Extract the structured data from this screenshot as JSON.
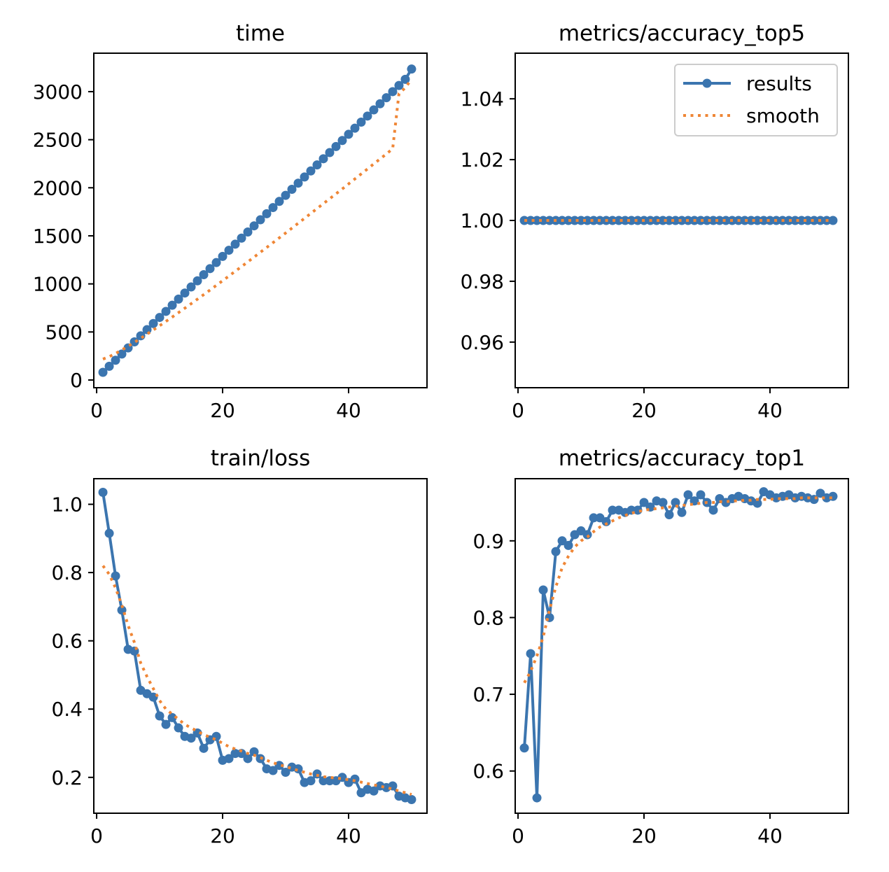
{
  "colors": {
    "results": "#3b75af",
    "smooth": "#ef8636",
    "axes": "#000000",
    "legend_border": "#cccccc"
  },
  "legend": {
    "placement": "top-right",
    "results_label": "results",
    "smooth_label": "smooth"
  },
  "chart_data": [
    {
      "type": "line",
      "title": "time",
      "xlabel": "",
      "ylabel": "",
      "xlim": [
        -0.45,
        52.45
      ],
      "ylim": [
        -80,
        3400
      ],
      "xticks": [
        0,
        20,
        40
      ],
      "yticks": [
        0,
        500,
        1000,
        1500,
        2000,
        2500,
        3000
      ],
      "legend": false,
      "grid": false,
      "x": [
        1,
        2,
        3,
        4,
        5,
        6,
        7,
        8,
        9,
        10,
        11,
        12,
        13,
        14,
        15,
        16,
        17,
        18,
        19,
        20,
        21,
        22,
        23,
        24,
        25,
        26,
        27,
        28,
        29,
        30,
        31,
        32,
        33,
        34,
        35,
        36,
        37,
        38,
        39,
        40,
        41,
        42,
        43,
        44,
        45,
        46,
        47,
        48,
        49,
        50
      ],
      "series": [
        {
          "name": "results",
          "values": [
            80,
            143,
            206,
            270,
            334,
            397,
            460,
            524,
            588,
            651,
            714,
            778,
            842,
            905,
            968,
            1032,
            1096,
            1159,
            1222,
            1286,
            1350,
            1413,
            1476,
            1540,
            1604,
            1667,
            1730,
            1794,
            1858,
            1921,
            1984,
            2048,
            2112,
            2175,
            2238,
            2302,
            2366,
            2429,
            2492,
            2556,
            2620,
            2683,
            2746,
            2810,
            2874,
            2937,
            3000,
            3064,
            3128,
            3235
          ]
        },
        {
          "name": "smooth",
          "values": [
            218,
            243,
            276,
            313,
            351,
            392,
            434,
            477,
            521,
            565,
            610,
            655,
            701,
            747,
            794,
            841,
            888,
            936,
            984,
            1033,
            1082,
            1131,
            1180,
            1229,
            1279,
            1329,
            1379,
            1429,
            1479,
            1529,
            1580,
            1631,
            1682,
            1733,
            1784,
            1835,
            1886,
            1937,
            1988,
            2040,
            2092,
            2144,
            2196,
            2248,
            2300,
            2352,
            2405,
            2980,
            3040,
            3130
          ]
        }
      ]
    },
    {
      "type": "line",
      "title": "metrics/accuracy_top5",
      "xlabel": "",
      "ylabel": "",
      "xlim": [
        -0.45,
        52.45
      ],
      "ylim": [
        0.945,
        1.055
      ],
      "xticks": [
        0,
        20,
        40
      ],
      "yticks": [
        0.96,
        0.98,
        1.0,
        1.02,
        1.04
      ],
      "ytick_labels": [
        "0.96",
        "0.98",
        "1.00",
        "1.02",
        "1.04"
      ],
      "legend": true,
      "grid": false,
      "x": [
        1,
        2,
        3,
        4,
        5,
        6,
        7,
        8,
        9,
        10,
        11,
        12,
        13,
        14,
        15,
        16,
        17,
        18,
        19,
        20,
        21,
        22,
        23,
        24,
        25,
        26,
        27,
        28,
        29,
        30,
        31,
        32,
        33,
        34,
        35,
        36,
        37,
        38,
        39,
        40,
        41,
        42,
        43,
        44,
        45,
        46,
        47,
        48,
        49,
        50
      ],
      "series": [
        {
          "name": "results",
          "values": [
            1,
            1,
            1,
            1,
            1,
            1,
            1,
            1,
            1,
            1,
            1,
            1,
            1,
            1,
            1,
            1,
            1,
            1,
            1,
            1,
            1,
            1,
            1,
            1,
            1,
            1,
            1,
            1,
            1,
            1,
            1,
            1,
            1,
            1,
            1,
            1,
            1,
            1,
            1,
            1,
            1,
            1,
            1,
            1,
            1,
            1,
            1,
            1,
            1,
            1
          ]
        },
        {
          "name": "smooth",
          "values": [
            1,
            1,
            1,
            1,
            1,
            1,
            1,
            1,
            1,
            1,
            1,
            1,
            1,
            1,
            1,
            1,
            1,
            1,
            1,
            1,
            1,
            1,
            1,
            1,
            1,
            1,
            1,
            1,
            1,
            1,
            1,
            1,
            1,
            1,
            1,
            1,
            1,
            1,
            1,
            1,
            1,
            1,
            1,
            1,
            1,
            1,
            1,
            1,
            1,
            1
          ]
        }
      ]
    },
    {
      "type": "line",
      "title": "train/loss",
      "xlabel": "",
      "ylabel": "",
      "xlim": [
        -0.45,
        52.45
      ],
      "ylim": [
        0.095,
        1.075
      ],
      "xticks": [
        0,
        20,
        40
      ],
      "yticks": [
        0.2,
        0.4,
        0.6,
        0.8,
        1.0
      ],
      "legend": false,
      "grid": false,
      "x": [
        1,
        2,
        3,
        4,
        5,
        6,
        7,
        8,
        9,
        10,
        11,
        12,
        13,
        14,
        15,
        16,
        17,
        18,
        19,
        20,
        21,
        22,
        23,
        24,
        25,
        26,
        27,
        28,
        29,
        30,
        31,
        32,
        33,
        34,
        35,
        36,
        37,
        38,
        39,
        40,
        41,
        42,
        43,
        44,
        45,
        46,
        47,
        48,
        49,
        50
      ],
      "series": [
        {
          "name": "results",
          "values": [
            1.035,
            0.915,
            0.79,
            0.69,
            0.575,
            0.57,
            0.455,
            0.445,
            0.435,
            0.38,
            0.355,
            0.375,
            0.345,
            0.32,
            0.315,
            0.33,
            0.285,
            0.31,
            0.32,
            0.25,
            0.255,
            0.27,
            0.27,
            0.255,
            0.275,
            0.255,
            0.225,
            0.22,
            0.235,
            0.215,
            0.23,
            0.225,
            0.185,
            0.19,
            0.21,
            0.19,
            0.19,
            0.19,
            0.2,
            0.185,
            0.195,
            0.155,
            0.165,
            0.16,
            0.175,
            0.17,
            0.175,
            0.145,
            0.14,
            0.135
          ]
        },
        {
          "name": "smooth",
          "values": [
            0.82,
            0.795,
            0.755,
            0.705,
            0.645,
            0.595,
            0.535,
            0.495,
            0.46,
            0.425,
            0.4,
            0.385,
            0.37,
            0.355,
            0.345,
            0.335,
            0.325,
            0.318,
            0.31,
            0.3,
            0.29,
            0.283,
            0.277,
            0.27,
            0.265,
            0.258,
            0.25,
            0.243,
            0.237,
            0.232,
            0.226,
            0.22,
            0.215,
            0.21,
            0.206,
            0.202,
            0.2,
            0.198,
            0.196,
            0.193,
            0.19,
            0.186,
            0.182,
            0.178,
            0.174,
            0.17,
            0.166,
            0.16,
            0.155,
            0.15
          ]
        }
      ]
    },
    {
      "type": "line",
      "title": "metrics/accuracy_top1",
      "xlabel": "",
      "ylabel": "",
      "xlim": [
        -0.45,
        52.45
      ],
      "ylim": [
        0.545,
        0.981
      ],
      "xticks": [
        0,
        20,
        40
      ],
      "yticks": [
        0.6,
        0.7,
        0.8,
        0.9
      ],
      "legend": false,
      "grid": false,
      "x": [
        1,
        2,
        3,
        4,
        5,
        6,
        7,
        8,
        9,
        10,
        11,
        12,
        13,
        14,
        15,
        16,
        17,
        18,
        19,
        20,
        21,
        22,
        23,
        24,
        25,
        26,
        27,
        28,
        29,
        30,
        31,
        32,
        33,
        34,
        35,
        36,
        37,
        38,
        39,
        40,
        41,
        42,
        43,
        44,
        45,
        46,
        47,
        48,
        49,
        50
      ],
      "series": [
        {
          "name": "results",
          "values": [
            0.63,
            0.753,
            0.565,
            0.836,
            0.8,
            0.886,
            0.9,
            0.894,
            0.908,
            0.913,
            0.908,
            0.93,
            0.93,
            0.925,
            0.94,
            0.94,
            0.937,
            0.94,
            0.94,
            0.95,
            0.944,
            0.952,
            0.95,
            0.934,
            0.95,
            0.937,
            0.96,
            0.952,
            0.96,
            0.95,
            0.94,
            0.955,
            0.95,
            0.955,
            0.958,
            0.955,
            0.952,
            0.949,
            0.964,
            0.96,
            0.956,
            0.958,
            0.96,
            0.956,
            0.958,
            0.956,
            0.954,
            0.962,
            0.956,
            0.958
          ]
        },
        {
          "name": "smooth",
          "values": [
            0.715,
            0.73,
            0.75,
            0.775,
            0.81,
            0.84,
            0.865,
            0.88,
            0.892,
            0.9,
            0.905,
            0.912,
            0.918,
            0.922,
            0.926,
            0.93,
            0.933,
            0.936,
            0.938,
            0.94,
            0.941,
            0.942,
            0.943,
            0.944,
            0.945,
            0.946,
            0.947,
            0.948,
            0.949,
            0.95,
            0.95,
            0.951,
            0.951,
            0.952,
            0.952,
            0.953,
            0.953,
            0.954,
            0.954,
            0.954,
            0.955,
            0.955,
            0.955,
            0.955,
            0.956,
            0.956,
            0.956,
            0.956,
            0.956,
            0.956
          ]
        }
      ]
    }
  ]
}
